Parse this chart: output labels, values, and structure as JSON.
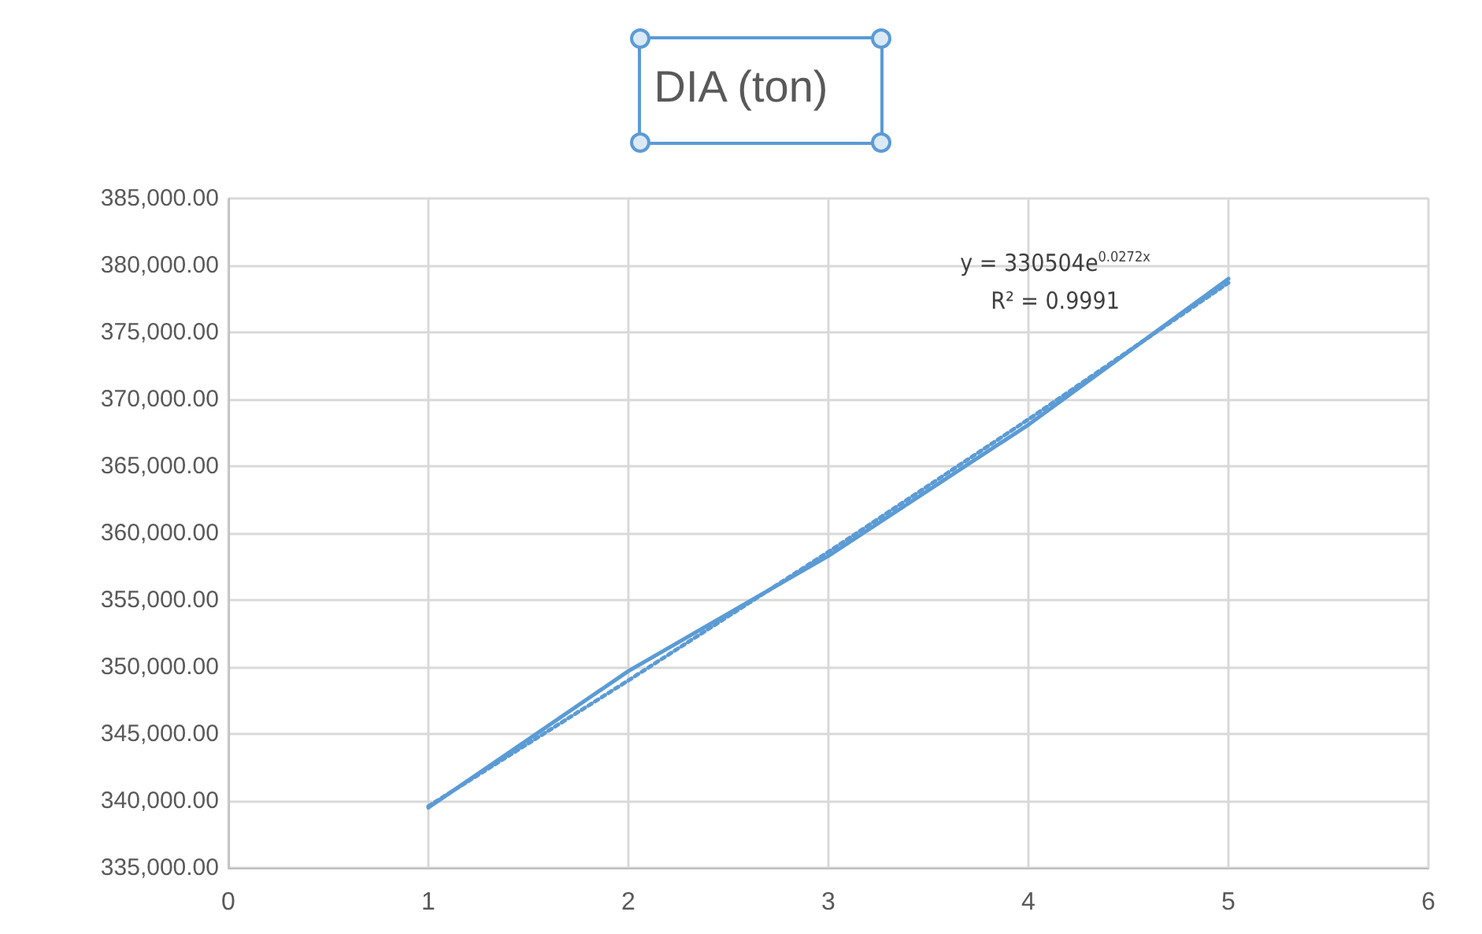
{
  "chart_data": {
    "type": "line",
    "title": "DIA (ton)",
    "annotations": [
      "y = 330504e$^{0.0272x}$",
      "R² = 0.9991"
    ],
    "series": [
      {
        "color": "#5b9bd5",
        "x": [
          1,
          2,
          3,
          4,
          5
        ],
        "values": [
          339500,
          349700,
          358300,
          368100,
          379000
        ],
        "line_style": "solid"
      },
      {
        "color": "#5b9bd5",
        "x": [
          1,
          2,
          3,
          4,
          5
        ],
        "values": [
          339600,
          349000,
          358600,
          368500,
          378700
        ],
        "line_style": "dotted"
      }
    ],
    "xlim": [
      0,
      6
    ],
    "xticks": [
      0,
      1,
      2,
      3,
      4,
      5,
      6
    ],
    "ylim": [
      335000,
      385000
    ],
    "yticks": [
      {
        "value": 335000,
        "label": "335,000.00"
      },
      {
        "value": 340000,
        "label": "340,000.00"
      },
      {
        "value": 345000,
        "label": "345,000.00"
      },
      {
        "value": 350000,
        "label": "350,000.00"
      },
      {
        "value": 355000,
        "label": "355,000.00"
      },
      {
        "value": 360000,
        "label": "360,000.00"
      },
      {
        "value": 365000,
        "label": "365,000.00"
      },
      {
        "value": 370000,
        "label": "370,000.00"
      },
      {
        "value": 375000,
        "label": "375,000.00"
      },
      {
        "value": 380000,
        "label": "380,000.00"
      },
      {
        "value": 385000,
        "label": "385,000.00"
      }
    ],
    "grid": true,
    "marker": "none"
  }
}
